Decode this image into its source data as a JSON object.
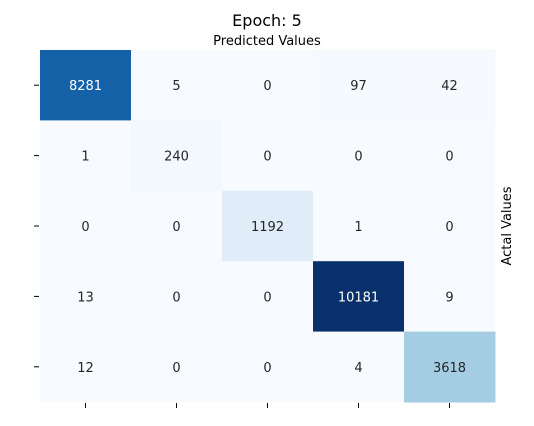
{
  "chart_data": {
    "type": "heatmap",
    "title": "Epoch: 5",
    "xlabel": "Predicted Values",
    "ylabel": "Actal Values",
    "x_tick_labels": [
      "",
      "",
      "",
      "",
      ""
    ],
    "y_tick_labels": [
      "",
      "",
      "",
      "",
      ""
    ],
    "matrix": [
      [
        8281,
        5,
        0,
        97,
        42
      ],
      [
        1,
        240,
        0,
        0,
        0
      ],
      [
        0,
        0,
        1192,
        1,
        0
      ],
      [
        13,
        0,
        0,
        10181,
        9
      ],
      [
        12,
        0,
        0,
        4,
        3618
      ]
    ],
    "colormap": "Blues",
    "color_min": 0,
    "color_max": 10181,
    "colorbar": false,
    "grid": false
  }
}
